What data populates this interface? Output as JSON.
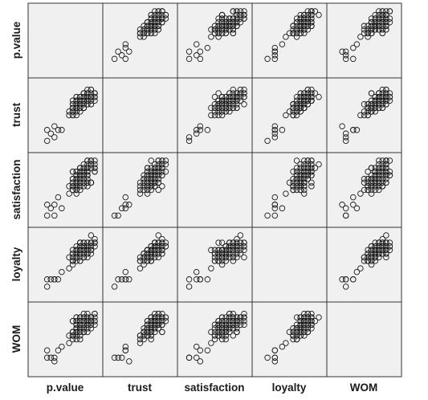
{
  "chart_data": {
    "type": "scatter",
    "kind": "scatterplot-matrix",
    "variables": [
      "p.value",
      "trust",
      "satisfaction",
      "loyalty",
      "WOM"
    ],
    "diagonal": "empty",
    "marker": "hollow-circle",
    "panel_background": "#f0f0f0",
    "marker_color": "#1a1a1a",
    "grid": false,
    "value_scale": [
      1,
      5
    ],
    "n_points": 150
  }
}
